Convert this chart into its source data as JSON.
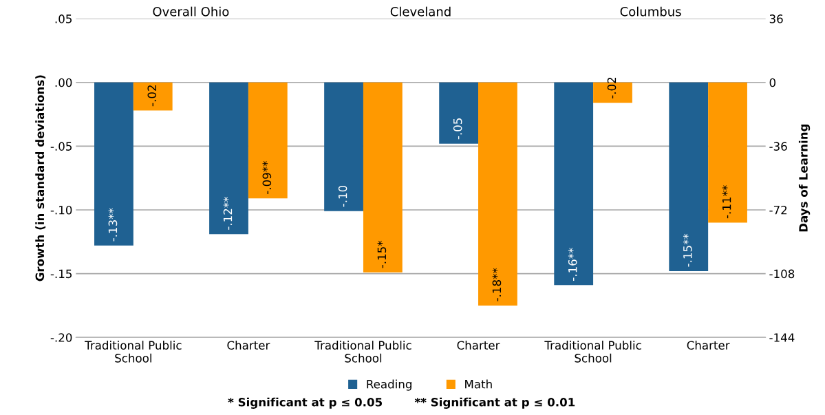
{
  "chart_data": {
    "type": "bar",
    "ylabel": "Growth (in standard deviations)",
    "y2label": "Days of Learning",
    "categories": [
      "Traditional Public School",
      "Charter",
      "Traditional Public School",
      "Charter",
      "Traditional Public School",
      "Charter"
    ],
    "series": [
      {
        "name": "Reading",
        "color": "#1f6192",
        "values": [
          -0.128,
          -0.119,
          -0.101,
          -0.048,
          -0.159,
          -0.148
        ],
        "value_labels": [
          "-.13**",
          "-.12**",
          "-.10",
          "-.05",
          "-.16**",
          "-.15**"
        ]
      },
      {
        "name": "Math",
        "color": "#ff9900",
        "values": [
          -0.022,
          -0.091,
          -0.149,
          -0.175,
          -0.016,
          -0.11
        ],
        "value_labels": [
          "-.02",
          "-.09**",
          "-.15*",
          "-.18**",
          "-.02",
          "-.11**"
        ]
      }
    ],
    "ylim": [
      -0.2,
      0.05
    ],
    "yticks": [
      {
        "value": -0.2,
        "label": "-.20"
      },
      {
        "value": -0.15,
        "label": "-.15"
      },
      {
        "value": -0.1,
        "label": "-.10"
      },
      {
        "value": -0.05,
        "label": "-.05"
      },
      {
        "value": 0,
        "label": ".00"
      },
      {
        "value": 0.05,
        "label": ".05"
      }
    ],
    "y2lim": [
      -144,
      36
    ],
    "y2ticks": [
      -144,
      -108,
      -72,
      -36,
      0,
      36
    ],
    "grid": "y",
    "legend": "bottom",
    "annotations": [
      "Overall Ohio",
      "Cleveland",
      "Columbus",
      "* Significant at p ≤ 0.05",
      "** Significant at p ≤ 0.01"
    ]
  }
}
